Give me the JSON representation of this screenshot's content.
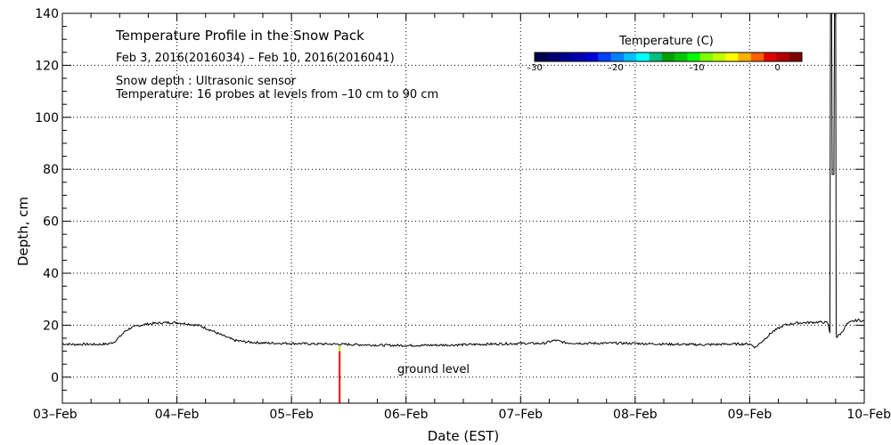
{
  "chart_data": {
    "type": "line",
    "title": "Temperature Profile in the Snow Pack",
    "subtitle": "Feb  3, 2016(2016034) – Feb 10, 2016(2016041)",
    "annotation_lines": [
      "Snow depth : Ultrasonic sensor",
      "Temperature: 16 probes at levels from –10 cm to 90 cm"
    ],
    "xlabel": "Date (EST)",
    "ylabel": "Depth, cm",
    "x_ticks": [
      "03–Feb",
      "04–Feb",
      "05–Feb",
      "06–Feb",
      "07–Feb",
      "08–Feb",
      "09–Feb",
      "10–Feb"
    ],
    "xlim": [
      0,
      7
    ],
    "ylim": [
      -10,
      140
    ],
    "y_ticks": [
      "0",
      "20",
      "40",
      "60",
      "80",
      "100",
      "120",
      "140"
    ],
    "grid": true,
    "ground_label": "ground level",
    "colorbar": {
      "label": "Temperature (C)",
      "range": [
        -30,
        3
      ],
      "tick_labels": [
        "–30",
        "–20",
        "–10",
        "0"
      ],
      "tick_values": [
        -30,
        -20,
        -10,
        0
      ],
      "colors": [
        "#00004d",
        "#000070",
        "#000090",
        "#0000b0",
        "#0000d8",
        "#0040ff",
        "#0080ff",
        "#00c0ff",
        "#00ffff",
        "#00c080",
        "#00a000",
        "#00c800",
        "#00ff00",
        "#80ff00",
        "#c0ff00",
        "#ffff00",
        "#ffb000",
        "#ff6000",
        "#e00000",
        "#b00000",
        "#800000"
      ]
    },
    "series": [
      {
        "line_color": "#000000",
        "points": [
          [
            0.0,
            12.8
          ],
          [
            0.1,
            12.6
          ],
          [
            0.2,
            12.7
          ],
          [
            0.3,
            12.6
          ],
          [
            0.4,
            12.8
          ],
          [
            0.45,
            13.5
          ],
          [
            0.5,
            15.5
          ],
          [
            0.55,
            17.8
          ],
          [
            0.6,
            19.0
          ],
          [
            0.7,
            20.2
          ],
          [
            0.8,
            20.7
          ],
          [
            0.9,
            21.0
          ],
          [
            1.0,
            21.0
          ],
          [
            1.1,
            20.5
          ],
          [
            1.2,
            19.8
          ],
          [
            1.3,
            18.0
          ],
          [
            1.4,
            16.0
          ],
          [
            1.5,
            14.2
          ],
          [
            1.6,
            13.6
          ],
          [
            1.7,
            13.3
          ],
          [
            1.8,
            13.1
          ],
          [
            2.0,
            13.0
          ],
          [
            2.2,
            12.8
          ],
          [
            2.4,
            12.7
          ],
          [
            2.6,
            12.5
          ],
          [
            2.8,
            12.3
          ],
          [
            3.0,
            12.2
          ],
          [
            3.2,
            12.3
          ],
          [
            3.4,
            12.4
          ],
          [
            3.6,
            12.6
          ],
          [
            3.8,
            12.8
          ],
          [
            4.0,
            13.0
          ],
          [
            4.2,
            13.0
          ],
          [
            4.3,
            14.2
          ],
          [
            4.4,
            13.2
          ],
          [
            4.6,
            13.0
          ],
          [
            4.8,
            13.1
          ],
          [
            5.0,
            13.0
          ],
          [
            5.2,
            12.8
          ],
          [
            5.4,
            12.6
          ],
          [
            5.6,
            12.5
          ],
          [
            5.8,
            12.7
          ],
          [
            6.0,
            12.8
          ],
          [
            6.05,
            11.5
          ],
          [
            6.1,
            13.5
          ],
          [
            6.15,
            15.5
          ],
          [
            6.2,
            17.5
          ],
          [
            6.3,
            20.0
          ],
          [
            6.4,
            20.8
          ],
          [
            6.5,
            21.0
          ],
          [
            6.6,
            21.2
          ],
          [
            6.68,
            21.0
          ],
          [
            6.7,
            17.0
          ],
          [
            6.705,
            140
          ],
          [
            6.715,
            140
          ],
          [
            6.72,
            78
          ],
          [
            6.735,
            78
          ],
          [
            6.74,
            140
          ],
          [
            6.75,
            140
          ],
          [
            6.755,
            17
          ],
          [
            6.76,
            15.5
          ],
          [
            6.8,
            17.0
          ],
          [
            6.85,
            20.5
          ],
          [
            6.9,
            21.5
          ],
          [
            6.95,
            22.0
          ],
          [
            7.0,
            21.5
          ]
        ]
      }
    ],
    "ground_marker": {
      "x": 2.42,
      "y_top": 10,
      "y_bottom": -10,
      "color": "#ff0000",
      "top_color": "#c8e600"
    }
  }
}
